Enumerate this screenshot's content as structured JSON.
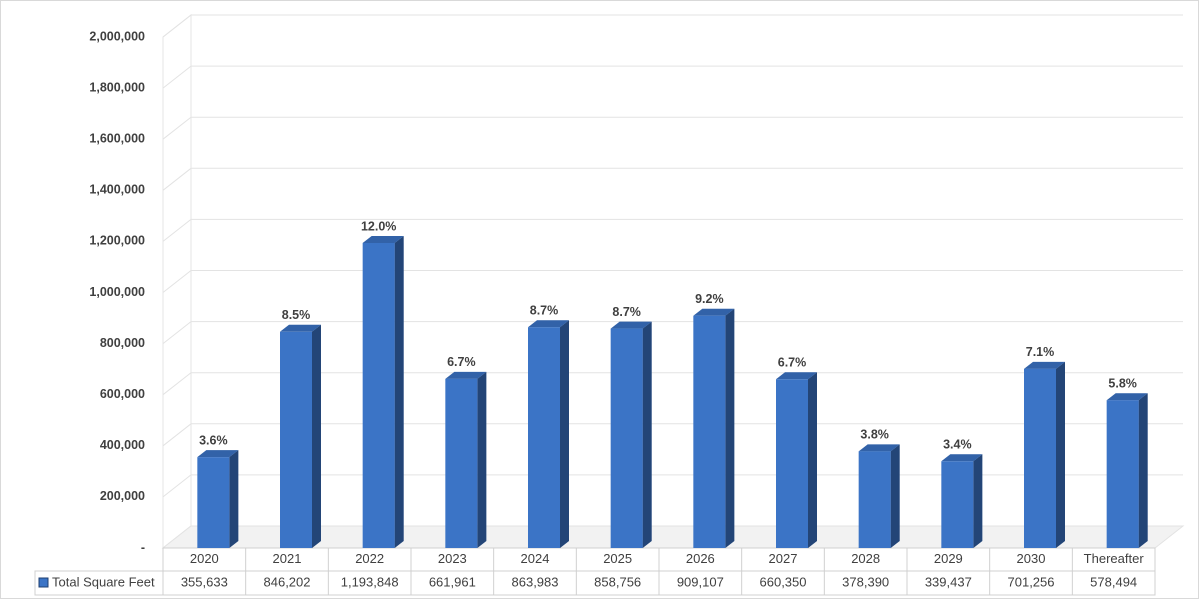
{
  "chart_data": {
    "type": "bar",
    "categories": [
      "2020",
      "2021",
      "2022",
      "2023",
      "2024",
      "2025",
      "2026",
      "2027",
      "2028",
      "2029",
      "2030",
      "Thereafter"
    ],
    "series": [
      {
        "name": "Total Square Feet",
        "color": "#3b74c6",
        "values": [
          355633,
          846202,
          1193848,
          661961,
          863983,
          858756,
          909107,
          660350,
          378390,
          339437,
          701256,
          578494
        ],
        "value_labels": [
          "355,633",
          "846,202",
          "1,193,848",
          "661,961",
          "863,983",
          "858,756",
          "909,107",
          "660,350",
          "378,390",
          "339,437",
          "701,256",
          "578,494"
        ]
      }
    ],
    "data_labels": [
      "3.6%",
      "8.5%",
      "12.0%",
      "6.7%",
      "8.7%",
      "8.7%",
      "9.2%",
      "6.7%",
      "3.8%",
      "3.4%",
      "7.1%",
      "5.8%"
    ],
    "ylim": [
      0,
      2000000
    ],
    "yticks": [
      {
        "value": 0,
        "label": "-"
      },
      {
        "value": 200000,
        "label": "200,000"
      },
      {
        "value": 400000,
        "label": "400,000"
      },
      {
        "value": 600000,
        "label": "600,000"
      },
      {
        "value": 800000,
        "label": "800,000"
      },
      {
        "value": 1000000,
        "label": "1,000,000"
      },
      {
        "value": 1200000,
        "label": "1,200,000"
      },
      {
        "value": 1400000,
        "label": "1,400,000"
      },
      {
        "value": 1600000,
        "label": "1,600,000"
      },
      {
        "value": 1800000,
        "label": "1,800,000"
      },
      {
        "value": 2000000,
        "label": "2,000,000"
      }
    ],
    "grid": true,
    "legend": "table"
  }
}
